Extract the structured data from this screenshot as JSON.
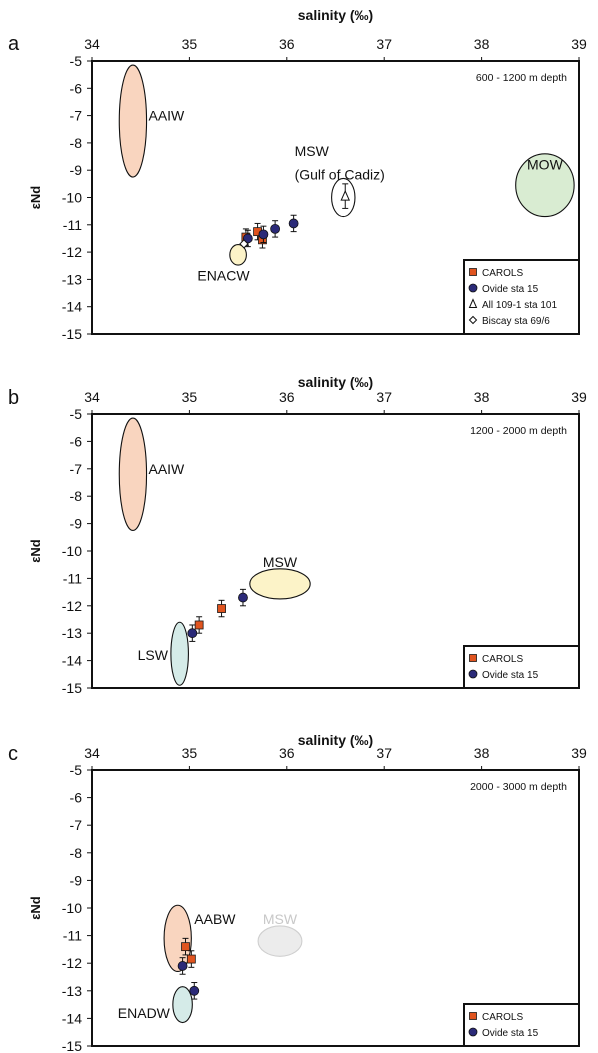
{
  "colors": {
    "carols": "#e0541f",
    "ovide": "#2b2a78",
    "aaiw": "#f9d5bf",
    "aabw": "#f9d5bf",
    "mow": "#d9ecd2",
    "msw_b": "#fcf3c8",
    "enacw": "#fcf3c8",
    "lsw": "#d5ebe8",
    "enadw": "#d5ebe8",
    "msw_c": "#ececec",
    "msw_c_text": "#c8c8c8"
  },
  "chart_data": [
    {
      "panel_letter": "a",
      "type": "scatter",
      "xlabel": "salinity (‰)",
      "ylabel": "εNd",
      "xlim": [
        34,
        39
      ],
      "ylim": [
        -15,
        -5
      ],
      "xticks": [
        "34",
        "35",
        "36",
        "37",
        "38",
        "39"
      ],
      "yticks": [
        "-5",
        "-6",
        "-7",
        "-8",
        "-9",
        "-10",
        "-11",
        "-12",
        "-13",
        "-14",
        "-15"
      ],
      "depth_label": "600 - 1200 m depth",
      "legend": [
        {
          "label": "CAROLS",
          "marker": "square"
        },
        {
          "label": "Ovide sta 15",
          "marker": "circle"
        },
        {
          "label": "All 109-1 sta 101",
          "marker": "triangle"
        },
        {
          "label": "Biscay sta 69/6",
          "marker": "diamond"
        }
      ],
      "water_masses": [
        {
          "label": "AAIW",
          "x": 34.42,
          "y": -7.2,
          "w": 0.28,
          "h": 4.1,
          "fill": "aaiw",
          "text": "default",
          "lx": 34.58,
          "ly": -7.0,
          "anchor": "start"
        },
        {
          "label": "MOW",
          "x": 38.65,
          "y": -9.55,
          "w": 0.6,
          "h": 2.3,
          "fill": "mow",
          "text": "default",
          "lx": 38.65,
          "ly": -8.8,
          "anchor": "middle"
        },
        {
          "label": "ENACW",
          "x": 35.5,
          "y": -12.1,
          "w": 0.17,
          "h": 0.75,
          "fill": "enacw",
          "text": "default",
          "lx": 35.35,
          "ly": -12.85,
          "anchor": "middle"
        },
        {
          "label": "",
          "x": 36.58,
          "y": -10.0,
          "w": 0.24,
          "h": 1.4,
          "fill": "none",
          "text": "default",
          "lx": 0,
          "ly": 0,
          "anchor": "start"
        }
      ],
      "texts": [
        {
          "text": "MSW",
          "x": 36.08,
          "y": -8.3
        },
        {
          "text": "(Gulf of Cadiz)",
          "x": 36.08,
          "y": -9.15
        }
      ],
      "series": [
        {
          "name": "CAROLS",
          "marker": "square",
          "points": [
            [
              35.58,
              -11.45,
              0.3
            ],
            [
              35.7,
              -11.25,
              0.3
            ],
            [
              35.75,
              -11.55,
              0.3
            ]
          ]
        },
        {
          "name": "Ovide sta 15",
          "marker": "circle",
          "points": [
            [
              35.6,
              -11.5,
              0.3
            ],
            [
              35.76,
              -11.35,
              0.3
            ],
            [
              35.88,
              -11.15,
              0.3
            ],
            [
              36.07,
              -10.95,
              0.3
            ]
          ]
        },
        {
          "name": "All 109-1 sta 101",
          "marker": "triangle",
          "points": [
            [
              36.6,
              -9.95,
              0.45
            ]
          ]
        },
        {
          "name": "Biscay sta 69/6",
          "marker": "diamond",
          "points": [
            [
              35.56,
              -11.7,
              0.0
            ]
          ]
        }
      ]
    },
    {
      "panel_letter": "b",
      "type": "scatter",
      "xlabel": "salinity (‰)",
      "ylabel": "εNd",
      "xlim": [
        34,
        39
      ],
      "ylim": [
        -15,
        -5
      ],
      "xticks": [
        "34",
        "35",
        "36",
        "37",
        "38",
        "39"
      ],
      "yticks": [
        "-5",
        "-6",
        "-7",
        "-8",
        "-9",
        "-10",
        "-11",
        "-12",
        "-13",
        "-14",
        "-15"
      ],
      "depth_label": "1200 - 2000 m depth",
      "legend": [
        {
          "label": "CAROLS",
          "marker": "square"
        },
        {
          "label": "Ovide sta 15",
          "marker": "circle"
        }
      ],
      "water_masses": [
        {
          "label": "AAIW",
          "x": 34.42,
          "y": -7.2,
          "w": 0.28,
          "h": 4.1,
          "fill": "aaiw",
          "text": "default",
          "lx": 34.58,
          "ly": -7.0,
          "anchor": "start"
        },
        {
          "label": "MSW",
          "x": 35.93,
          "y": -11.2,
          "w": 0.62,
          "h": 1.1,
          "fill": "msw_b",
          "text": "default",
          "lx": 35.93,
          "ly": -10.4,
          "anchor": "middle"
        },
        {
          "label": "LSW",
          "x": 34.9,
          "y": -13.75,
          "w": 0.18,
          "h": 2.3,
          "fill": "lsw",
          "text": "default",
          "lx": 34.78,
          "ly": -13.8,
          "anchor": "end"
        }
      ],
      "texts": [],
      "series": [
        {
          "name": "CAROLS",
          "marker": "square",
          "points": [
            [
              35.1,
              -12.7,
              0.3
            ],
            [
              35.33,
              -12.1,
              0.3
            ]
          ]
        },
        {
          "name": "Ovide sta 15",
          "marker": "circle",
          "points": [
            [
              35.03,
              -13.0,
              0.3
            ],
            [
              35.55,
              -11.7,
              0.3
            ]
          ]
        }
      ]
    },
    {
      "panel_letter": "c",
      "type": "scatter",
      "xlabel": "salinity (‰)",
      "ylabel": "εNd",
      "xlim": [
        34,
        39
      ],
      "ylim": [
        -15,
        -5
      ],
      "xticks": [
        "34",
        "35",
        "36",
        "37",
        "38",
        "39"
      ],
      "yticks": [
        "-5",
        "-6",
        "-7",
        "-8",
        "-9",
        "-10",
        "-11",
        "-12",
        "-13",
        "-14",
        "-15"
      ],
      "depth_label": "2000 - 3000 m depth",
      "legend": [
        {
          "label": "CAROLS",
          "marker": "square"
        },
        {
          "label": "Ovide sta 15",
          "marker": "circle"
        }
      ],
      "water_masses": [
        {
          "label": "AABW",
          "x": 34.88,
          "y": -11.1,
          "w": 0.28,
          "h": 2.4,
          "fill": "aabw",
          "text": "default",
          "lx": 35.05,
          "ly": -10.4,
          "anchor": "start"
        },
        {
          "label": "MSW",
          "x": 35.93,
          "y": -11.2,
          "w": 0.45,
          "h": 1.1,
          "fill": "msw_c",
          "text": "msw_c_text",
          "stroke": "#cfcfcf",
          "lx": 35.93,
          "ly": -10.4,
          "anchor": "middle"
        },
        {
          "label": "ENADW",
          "x": 34.93,
          "y": -13.5,
          "w": 0.2,
          "h": 1.3,
          "fill": "enadw",
          "text": "default",
          "lx": 34.8,
          "ly": -13.8,
          "anchor": "end"
        }
      ],
      "texts": [],
      "series": [
        {
          "name": "CAROLS",
          "marker": "square",
          "points": [
            [
              34.96,
              -11.4,
              0.3
            ],
            [
              35.02,
              -11.85,
              0.3
            ]
          ]
        },
        {
          "name": "Ovide sta 15",
          "marker": "circle",
          "points": [
            [
              34.93,
              -12.1,
              0.3
            ],
            [
              35.05,
              -13.0,
              0.3
            ]
          ]
        }
      ]
    }
  ]
}
